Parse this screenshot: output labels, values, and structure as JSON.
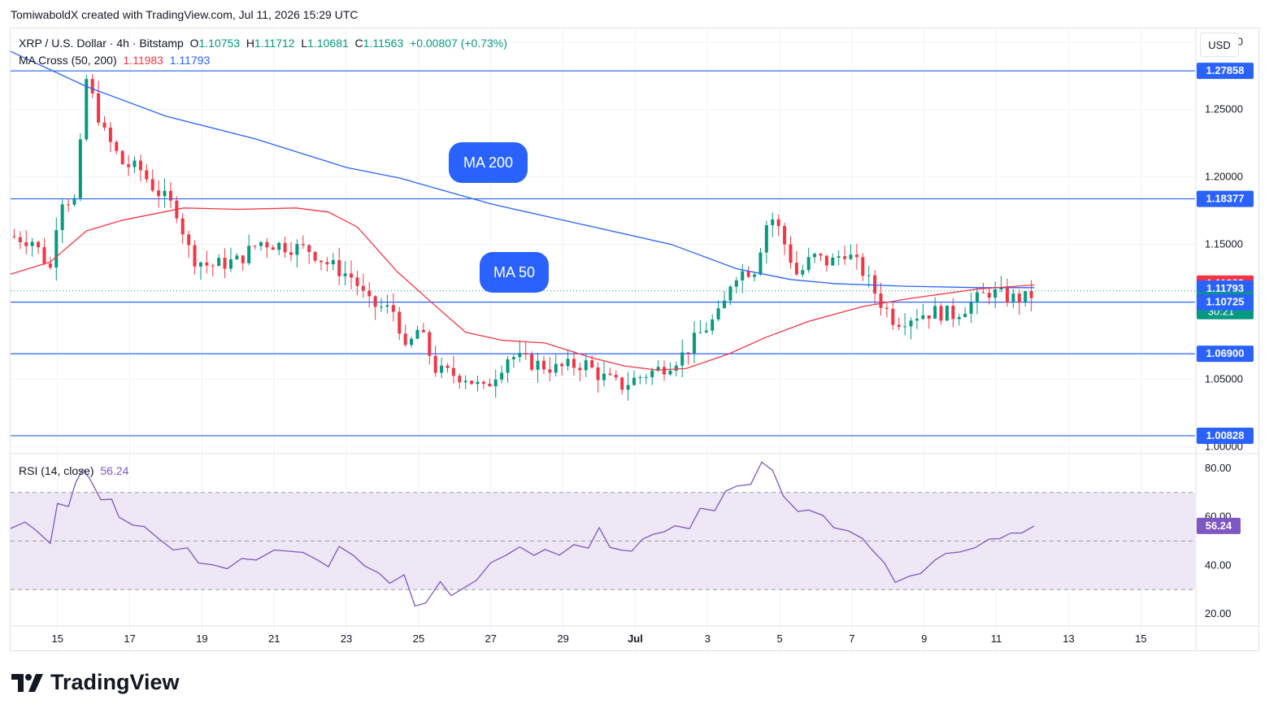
{
  "header": {
    "attribution": "TomiwaboldX created with TradingView.com, Jul 11, 2026 15:29 UTC"
  },
  "legend": {
    "symbol": "XRP / U.S. Dollar · 4h · Bitstamp",
    "open_label": "O",
    "open": "1.10753",
    "high_label": "H",
    "high": "1.11712",
    "low_label": "L",
    "low": "1.10681",
    "close_label": "C",
    "close": "1.11563",
    "change": "+0.00807 (+0.73%)",
    "ma_label": "MA Cross (50, 200)",
    "ma50": "1.11983",
    "ma200": "1.11793",
    "rsi_label": "RSI (14, close)",
    "rsi": "56.24"
  },
  "currency_button": "USD",
  "annotations": {
    "ma200": "MA 200",
    "ma50": "MA 50"
  },
  "countdown": "30:21",
  "brand": "TradingView",
  "colors": {
    "up": "#089981",
    "down": "#f23645",
    "ma50": "#f23645",
    "ma200": "#2962ff",
    "hline": "#2962ff",
    "rsi": "#7e57c2",
    "rsi_band": "#ede7f6"
  },
  "chart_data": [
    {
      "type": "candlestick",
      "title": "XRP / U.S. Dollar · 4h · Bitstamp",
      "interval": "4h",
      "ylim": [
        0.995,
        1.31
      ],
      "price_ticks": [
        "1.30000",
        "1.25000",
        "1.20000",
        "1.15000",
        "1.05000",
        "1.00000"
      ],
      "x_ticks": [
        "15",
        "17",
        "19",
        "21",
        "23",
        "25",
        "27",
        "29",
        "Jul",
        "3",
        "5",
        "7",
        "9",
        "11",
        "13",
        "15"
      ],
      "x_tick_days": [
        15,
        17,
        19,
        21,
        23,
        25,
        27,
        29,
        31,
        33,
        35,
        37,
        39,
        41,
        43,
        45
      ],
      "x_range_days": [
        13.7,
        46.5
      ],
      "horizontal_lines": [
        "1.27858",
        "1.18377",
        "1.10725",
        "1.06900",
        "1.00828"
      ],
      "price_labels": [
        {
          "text": "1.27858",
          "value": 1.27858,
          "color": "#2962ff"
        },
        {
          "text": "1.18377",
          "value": 1.18377,
          "color": "#2962ff"
        },
        {
          "text": "1.11983",
          "value": 1.11983,
          "color": "#f23645"
        },
        {
          "text": "1.11793",
          "value": 1.11793,
          "color": "#2962ff"
        },
        {
          "text": "1.11563",
          "value": 1.11563,
          "color": "#089981"
        },
        {
          "text": "1.10725",
          "value": 1.10725,
          "color": "#2962ff"
        },
        {
          "text": "1.06900",
          "value": 1.069,
          "color": "#2962ff"
        },
        {
          "text": "1.00828",
          "value": 1.00828,
          "color": "#2962ff"
        }
      ],
      "close_anchors": [
        [
          13.7,
          1.156
        ],
        [
          14.3,
          1.153
        ],
        [
          14.9,
          1.128
        ],
        [
          15.0,
          1.185
        ],
        [
          15.5,
          1.182
        ],
        [
          15.8,
          1.272
        ],
        [
          16.3,
          1.232
        ],
        [
          16.8,
          1.21
        ],
        [
          17.3,
          1.205
        ],
        [
          17.6,
          1.194
        ],
        [
          18.3,
          1.175
        ],
        [
          18.7,
          1.141
        ],
        [
          19.2,
          1.134
        ],
        [
          20.0,
          1.138
        ],
        [
          20.6,
          1.152
        ],
        [
          21.5,
          1.148
        ],
        [
          22.0,
          1.146
        ],
        [
          22.4,
          1.137
        ],
        [
          23.2,
          1.125
        ],
        [
          23.6,
          1.106
        ],
        [
          24.4,
          1.1
        ],
        [
          24.6,
          1.068
        ],
        [
          25.0,
          1.088
        ],
        [
          25.5,
          1.056
        ],
        [
          26.3,
          1.052
        ],
        [
          26.8,
          1.042
        ],
        [
          27.5,
          1.068
        ],
        [
          28.0,
          1.063
        ],
        [
          28.8,
          1.058
        ],
        [
          29.6,
          1.062
        ],
        [
          30.0,
          1.053
        ],
        [
          30.6,
          1.045
        ],
        [
          31.2,
          1.053
        ],
        [
          31.7,
          1.058
        ],
        [
          32.3,
          1.068
        ],
        [
          32.8,
          1.084
        ],
        [
          33.4,
          1.1
        ],
        [
          33.7,
          1.128
        ],
        [
          34.3,
          1.132
        ],
        [
          34.7,
          1.172
        ],
        [
          34.9,
          1.166
        ],
        [
          35.5,
          1.126
        ],
        [
          35.9,
          1.141
        ],
        [
          36.4,
          1.136
        ],
        [
          36.8,
          1.145
        ],
        [
          37.3,
          1.13
        ],
        [
          37.8,
          1.107
        ],
        [
          38.2,
          1.093
        ],
        [
          38.8,
          1.098
        ],
        [
          39.3,
          1.1
        ],
        [
          39.8,
          1.098
        ],
        [
          40.4,
          1.108
        ],
        [
          40.8,
          1.115
        ],
        [
          41.4,
          1.11
        ],
        [
          41.9,
          1.11
        ],
        [
          42.05,
          1.1156
        ]
      ],
      "ma50_anchors": [
        [
          13.7,
          1.128
        ],
        [
          14.8,
          1.137
        ],
        [
          15.8,
          1.16
        ],
        [
          16.8,
          1.168
        ],
        [
          18.5,
          1.177
        ],
        [
          20.0,
          1.176
        ],
        [
          21.6,
          1.177
        ],
        [
          22.5,
          1.174
        ],
        [
          23.3,
          1.163
        ],
        [
          24.4,
          1.13
        ],
        [
          25.4,
          1.106
        ],
        [
          26.3,
          1.085
        ],
        [
          27.3,
          1.079
        ],
        [
          28.5,
          1.077
        ],
        [
          29.8,
          1.066
        ],
        [
          30.7,
          1.06
        ],
        [
          31.6,
          1.057
        ],
        [
          32.4,
          1.058
        ],
        [
          33.6,
          1.069
        ],
        [
          34.6,
          1.081
        ],
        [
          35.8,
          1.093
        ],
        [
          37.3,
          1.104
        ],
        [
          38.6,
          1.11
        ],
        [
          40.5,
          1.117
        ],
        [
          42.05,
          1.12
        ]
      ],
      "ma200_anchors": [
        [
          13.7,
          1.293
        ],
        [
          15.8,
          1.267
        ],
        [
          18.0,
          1.245
        ],
        [
          20.5,
          1.228
        ],
        [
          23.0,
          1.207
        ],
        [
          24.5,
          1.199
        ],
        [
          27.0,
          1.18
        ],
        [
          29.5,
          1.165
        ],
        [
          32.0,
          1.15
        ],
        [
          33.8,
          1.132
        ],
        [
          35.3,
          1.124
        ],
        [
          36.5,
          1.121
        ],
        [
          38.5,
          1.119
        ],
        [
          40.5,
          1.118
        ],
        [
          42.05,
          1.118
        ]
      ]
    },
    {
      "type": "line",
      "title": "RSI (14, close)",
      "ylim": [
        15,
        86
      ],
      "y_ticks": [
        "80.00",
        "60.00",
        "40.00",
        "20.00"
      ],
      "band": [
        30,
        70
      ],
      "midline": 50,
      "current": "56.24",
      "current_value": 56.24,
      "points": [
        [
          13.7,
          55.2
        ],
        [
          14.1,
          57.8
        ],
        [
          14.4,
          54.5
        ],
        [
          14.8,
          49
        ],
        [
          15.0,
          65.5
        ],
        [
          15.3,
          64.2
        ],
        [
          15.5,
          74
        ],
        [
          15.7,
          79.5
        ],
        [
          15.9,
          75.5
        ],
        [
          16.2,
          67
        ],
        [
          16.5,
          67.2
        ],
        [
          16.7,
          59.8
        ],
        [
          17.1,
          56.5
        ],
        [
          17.4,
          56
        ],
        [
          17.8,
          51
        ],
        [
          18.2,
          46.3
        ],
        [
          18.6,
          47.2
        ],
        [
          18.9,
          41
        ],
        [
          19.3,
          40.2
        ],
        [
          19.7,
          38.6
        ],
        [
          20.1,
          42.8
        ],
        [
          20.5,
          42.2
        ],
        [
          21.0,
          46.3
        ],
        [
          21.4,
          45.8
        ],
        [
          21.8,
          45.3
        ],
        [
          22.2,
          42.2
        ],
        [
          22.5,
          39.4
        ],
        [
          22.8,
          47.8
        ],
        [
          23.2,
          44
        ],
        [
          23.5,
          39.8
        ],
        [
          23.9,
          36.8
        ],
        [
          24.2,
          32.6
        ],
        [
          24.6,
          36.1
        ],
        [
          24.9,
          23.2
        ],
        [
          25.2,
          24.5
        ],
        [
          25.6,
          33.3
        ],
        [
          25.9,
          27.5
        ],
        [
          26.2,
          30.2
        ],
        [
          26.6,
          33.8
        ],
        [
          27.0,
          41.1
        ],
        [
          27.4,
          44
        ],
        [
          27.8,
          47.6
        ],
        [
          28.2,
          44.1
        ],
        [
          28.5,
          46.5
        ],
        [
          28.9,
          44.2
        ],
        [
          29.3,
          48.5
        ],
        [
          29.7,
          47.1
        ],
        [
          30.0,
          55.5
        ],
        [
          30.3,
          47.4
        ],
        [
          30.6,
          46.3
        ],
        [
          30.9,
          45.8
        ],
        [
          31.2,
          50.8
        ],
        [
          31.5,
          52.8
        ],
        [
          31.8,
          53.8
        ],
        [
          32.1,
          56.3
        ],
        [
          32.5,
          55.1
        ],
        [
          32.8,
          63.5
        ],
        [
          33.2,
          62.5
        ],
        [
          33.5,
          70.5
        ],
        [
          33.8,
          72.6
        ],
        [
          34.2,
          73.4
        ],
        [
          34.5,
          82.5
        ],
        [
          34.8,
          79.2
        ],
        [
          35.1,
          68.5
        ],
        [
          35.5,
          62.2
        ],
        [
          35.8,
          62.8
        ],
        [
          36.2,
          60.5
        ],
        [
          36.5,
          55.5
        ],
        [
          36.9,
          54.2
        ],
        [
          37.3,
          51
        ],
        [
          37.5,
          47.3
        ],
        [
          37.9,
          41
        ],
        [
          38.2,
          33
        ],
        [
          38.6,
          35.6
        ],
        [
          38.9,
          36.6
        ],
        [
          39.3,
          42.2
        ],
        [
          39.6,
          44.9
        ],
        [
          40.0,
          45.5
        ],
        [
          40.4,
          47.2
        ],
        [
          40.8,
          50.8
        ],
        [
          41.1,
          51
        ],
        [
          41.4,
          53.3
        ],
        [
          41.7,
          53.3
        ],
        [
          42.05,
          56.24
        ]
      ]
    }
  ]
}
